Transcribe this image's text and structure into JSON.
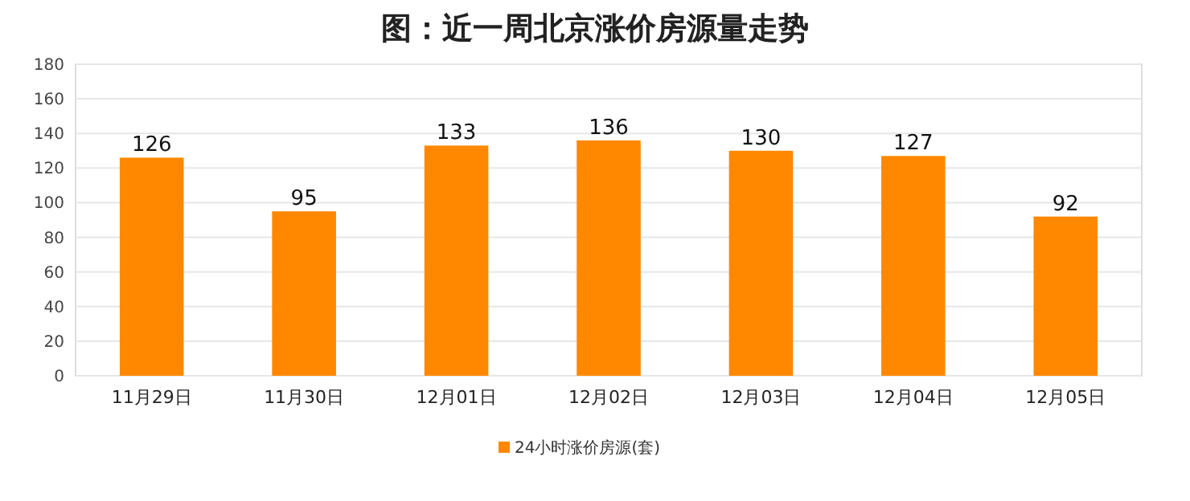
{
  "chart_data": {
    "type": "bar",
    "title": "图：近一周北京涨价房源量走势",
    "categories": [
      "11月29日",
      "11月30日",
      "12月01日",
      "12月02日",
      "12月03日",
      "12月04日",
      "12月05日"
    ],
    "series": [
      {
        "name": "24小时涨价房源(套)",
        "color": "#ff8800",
        "values": [
          126,
          95,
          133,
          136,
          130,
          127,
          92
        ]
      }
    ],
    "ylim": [
      0,
      180
    ],
    "yticks": [
      0,
      20,
      40,
      60,
      80,
      100,
      120,
      140,
      160,
      180
    ],
    "grid": "y",
    "data_labels": true,
    "legend": "bottom"
  }
}
